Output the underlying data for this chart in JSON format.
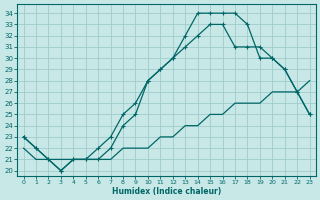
{
  "xlabel": "Humidex (Indice chaleur)",
  "bg_color": "#c8e8e8",
  "grid_color": "#a0cccc",
  "line_color": "#006666",
  "xlim": [
    -0.5,
    23.5
  ],
  "ylim": [
    19.5,
    34.8
  ],
  "xticks": [
    0,
    1,
    2,
    3,
    4,
    5,
    6,
    7,
    8,
    9,
    10,
    11,
    12,
    13,
    14,
    15,
    16,
    17,
    18,
    19,
    20,
    21,
    22,
    23
  ],
  "yticks": [
    20,
    21,
    22,
    23,
    24,
    25,
    26,
    27,
    28,
    29,
    30,
    31,
    32,
    33,
    34
  ],
  "curve1_x": [
    0,
    1,
    2,
    3,
    4,
    5,
    6,
    7,
    8,
    9,
    10,
    11,
    12,
    13,
    14,
    15,
    16,
    17,
    18,
    19,
    20,
    21,
    22,
    23
  ],
  "curve1_y": [
    23,
    22,
    21,
    20,
    21,
    21,
    21,
    22,
    24,
    25,
    28,
    29,
    30,
    32,
    34,
    34,
    34,
    34,
    33,
    30,
    30,
    29,
    27,
    25
  ],
  "curve2_x": [
    0,
    1,
    2,
    3,
    4,
    5,
    6,
    7,
    8,
    9,
    10,
    11,
    12,
    13,
    14,
    15,
    16,
    17,
    18,
    19,
    20,
    21,
    22,
    23
  ],
  "curve2_y": [
    23,
    22,
    21,
    20,
    21,
    21,
    22,
    23,
    25,
    26,
    28,
    29,
    30,
    31,
    32,
    33,
    33,
    31,
    31,
    31,
    30,
    29,
    27,
    25
  ],
  "curve3_x": [
    0,
    1,
    2,
    3,
    4,
    5,
    6,
    7,
    8,
    9,
    10,
    11,
    12,
    13,
    14,
    15,
    16,
    17,
    18,
    19,
    20,
    21,
    22,
    23
  ],
  "curve3_y": [
    22,
    21,
    21,
    21,
    21,
    21,
    21,
    21,
    22,
    22,
    22,
    23,
    23,
    24,
    24,
    25,
    25,
    26,
    26,
    26,
    27,
    27,
    27,
    28
  ]
}
